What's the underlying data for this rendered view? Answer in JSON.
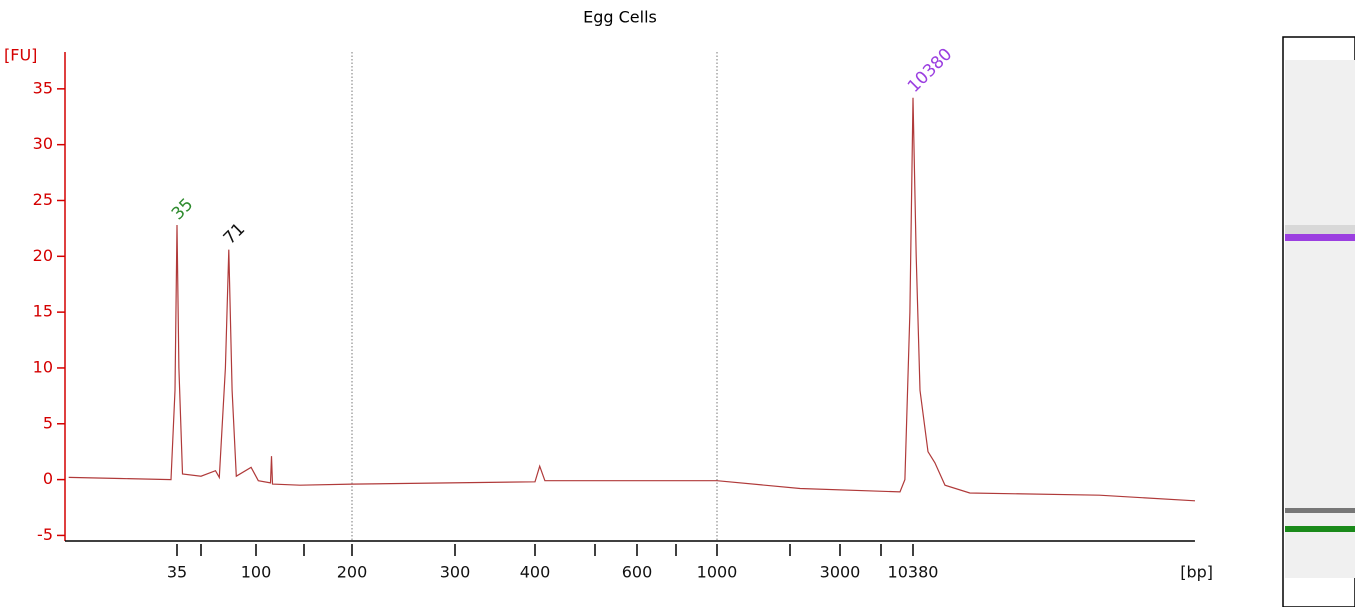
{
  "chart_data": {
    "type": "line",
    "title": "Egg Cells",
    "y_label": "[FU]",
    "x_label": "[bp]",
    "color": "#b03a3a",
    "x": [
      7,
      15,
      32,
      34,
      35,
      36,
      38,
      50,
      60,
      63,
      68,
      71,
      74,
      78,
      94,
      102,
      113,
      114,
      115,
      145,
      200,
      294,
      400,
      407,
      415,
      603,
      1000,
      2170,
      8850,
      9400,
      9990,
      10380,
      10800,
      11310,
      12480,
      13600,
      15400,
      20900,
      103000,
      334000
    ],
    "values": [
      0.2,
      0.1,
      0,
      8,
      22.8,
      10,
      0.5,
      0.3,
      0.8,
      0.2,
      10,
      20.6,
      8,
      0.3,
      1.1,
      -0.1,
      -0.3,
      2.1,
      -0.4,
      -0.5,
      -0.4,
      -0.3,
      -0.2,
      1.2,
      -0.1,
      -0.1,
      -0.1,
      -0.8,
      -1.1,
      0,
      15,
      34.2,
      20,
      8,
      2.5,
      1.5,
      -0.5,
      -1.2,
      -1.4,
      -1.9
    ],
    "xlim": [
      7,
      334000
    ],
    "ylim": [
      -5.5,
      38.3
    ],
    "xticks": [
      35,
      {
        "value": 50,
        "label": null
      },
      100,
      {
        "value": 150,
        "label": null
      },
      200,
      300,
      400,
      {
        "value": 500,
        "label": null
      },
      600,
      {
        "value": 700,
        "label": null
      },
      1000,
      {
        "value": 2000,
        "label": null
      },
      3000,
      {
        "value": 7000,
        "label": null
      },
      10380
    ],
    "yticks": [
      -5,
      0,
      5,
      10,
      15,
      20,
      25,
      30,
      35
    ],
    "vlines": [
      200,
      1000
    ],
    "peaks": [
      {
        "label": "35",
        "x": 35,
        "color": "#2e8b2e"
      },
      {
        "label": "71",
        "x": 71,
        "color": "#111111"
      },
      {
        "label": "10380",
        "x": 10380,
        "color": "#9b3fe0"
      }
    ]
  }
}
